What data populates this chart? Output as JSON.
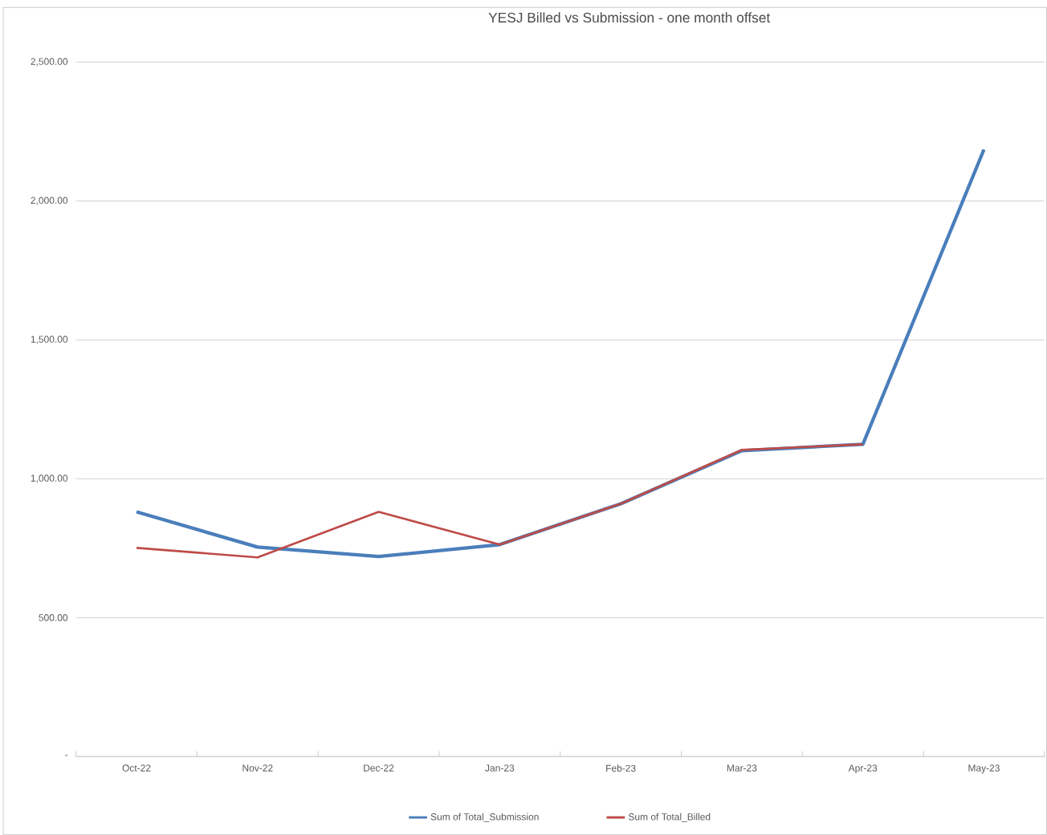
{
  "chart_data": {
    "type": "line",
    "title": "YESJ Billed vs Submission - one month offset",
    "categories": [
      "Oct-22",
      "Nov-22",
      "Dec-22",
      "Jan-23",
      "Feb-23",
      "Mar-23",
      "Apr-23",
      "May-23"
    ],
    "series": [
      {
        "name": "Sum of Total_Submission",
        "color": "#4a7ebb",
        "values": [
          881,
          754,
          720,
          763,
          910,
          1101,
          1124,
          2185
        ]
      },
      {
        "name": "Sum of Total_Billed",
        "color": "#be4b48",
        "values": [
          751,
          717,
          881,
          763,
          910,
          1104,
          1124,
          null
        ]
      }
    ],
    "ylim": [
      0,
      2500
    ],
    "yticks": [
      {
        "value": 0,
        "label": "-"
      },
      {
        "value": 500,
        "label": "500.00"
      },
      {
        "value": 1000,
        "label": "1,000.00"
      },
      {
        "value": 1500,
        "label": "1,500.00"
      },
      {
        "value": 2000,
        "label": "2,000.00"
      },
      {
        "value": 2500,
        "label": "2,500.00"
      }
    ],
    "grid": "y",
    "legend": "bottom",
    "marker": "none",
    "line_style": "solid"
  }
}
